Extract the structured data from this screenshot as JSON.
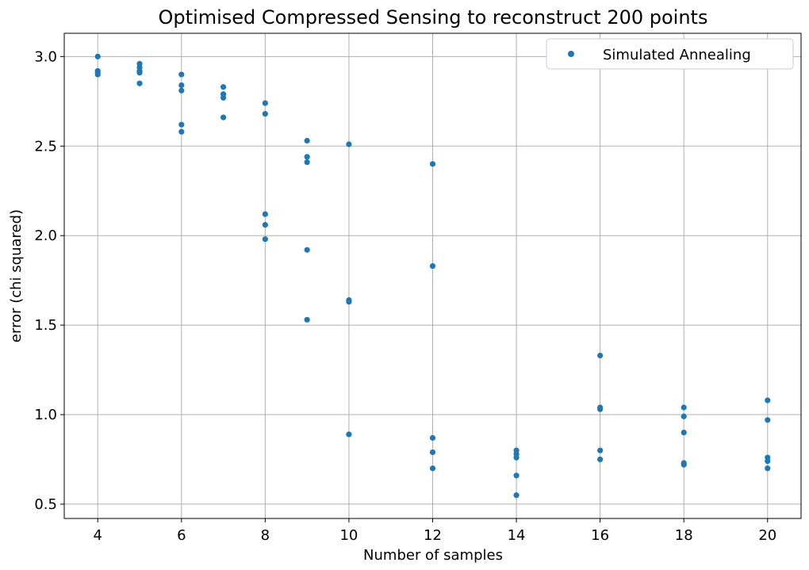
{
  "chart_data": {
    "type": "scatter",
    "title": "Optimised Compressed Sensing to reconstruct 200 points",
    "xlabel": "Number of samples",
    "ylabel": "error (chi squared)",
    "xlim": [
      3.2,
      20.8
    ],
    "ylim": [
      0.42,
      3.13
    ],
    "xticks": [
      4,
      6,
      8,
      10,
      12,
      14,
      16,
      18,
      20
    ],
    "yticks": [
      0.5,
      1.0,
      1.5,
      2.0,
      2.5,
      3.0
    ],
    "xtick_labels": [
      "4",
      "6",
      "8",
      "10",
      "12",
      "14",
      "16",
      "18",
      "20"
    ],
    "ytick_labels": [
      "0.5",
      "1.0",
      "1.5",
      "2.0",
      "2.5",
      "3.0"
    ],
    "grid": true,
    "legend_position": "top-right",
    "series": [
      {
        "name": "Simulated Annealing",
        "color": "#1f77b4",
        "points": [
          [
            4,
            3.0
          ],
          [
            4,
            2.92
          ],
          [
            4,
            2.91
          ],
          [
            4,
            2.9
          ],
          [
            5,
            2.96
          ],
          [
            5,
            2.94
          ],
          [
            5,
            2.92
          ],
          [
            5,
            2.91
          ],
          [
            5,
            2.85
          ],
          [
            6,
            2.9
          ],
          [
            6,
            2.84
          ],
          [
            6,
            2.81
          ],
          [
            6,
            2.62
          ],
          [
            6,
            2.58
          ],
          [
            7,
            2.83
          ],
          [
            7,
            2.79
          ],
          [
            7,
            2.77
          ],
          [
            7,
            2.66
          ],
          [
            8,
            2.74
          ],
          [
            8,
            2.68
          ],
          [
            8,
            2.12
          ],
          [
            8,
            2.06
          ],
          [
            8,
            1.98
          ],
          [
            9,
            2.53
          ],
          [
            9,
            2.44
          ],
          [
            9,
            2.41
          ],
          [
            9,
            1.92
          ],
          [
            9,
            1.53
          ],
          [
            10,
            2.51
          ],
          [
            10,
            1.64
          ],
          [
            10,
            1.63
          ],
          [
            10,
            0.89
          ],
          [
            12,
            2.4
          ],
          [
            12,
            1.83
          ],
          [
            12,
            0.87
          ],
          [
            12,
            0.79
          ],
          [
            12,
            0.7
          ],
          [
            14,
            0.8
          ],
          [
            14,
            0.78
          ],
          [
            14,
            0.76
          ],
          [
            14,
            0.66
          ],
          [
            14,
            0.55
          ],
          [
            16,
            1.33
          ],
          [
            16,
            1.04
          ],
          [
            16,
            1.03
          ],
          [
            16,
            0.8
          ],
          [
            16,
            0.75
          ],
          [
            18,
            1.04
          ],
          [
            18,
            0.99
          ],
          [
            18,
            0.9
          ],
          [
            18,
            0.73
          ],
          [
            18,
            0.72
          ],
          [
            20,
            1.08
          ],
          [
            20,
            0.97
          ],
          [
            20,
            0.76
          ],
          [
            20,
            0.74
          ],
          [
            20,
            0.7
          ]
        ]
      }
    ]
  }
}
